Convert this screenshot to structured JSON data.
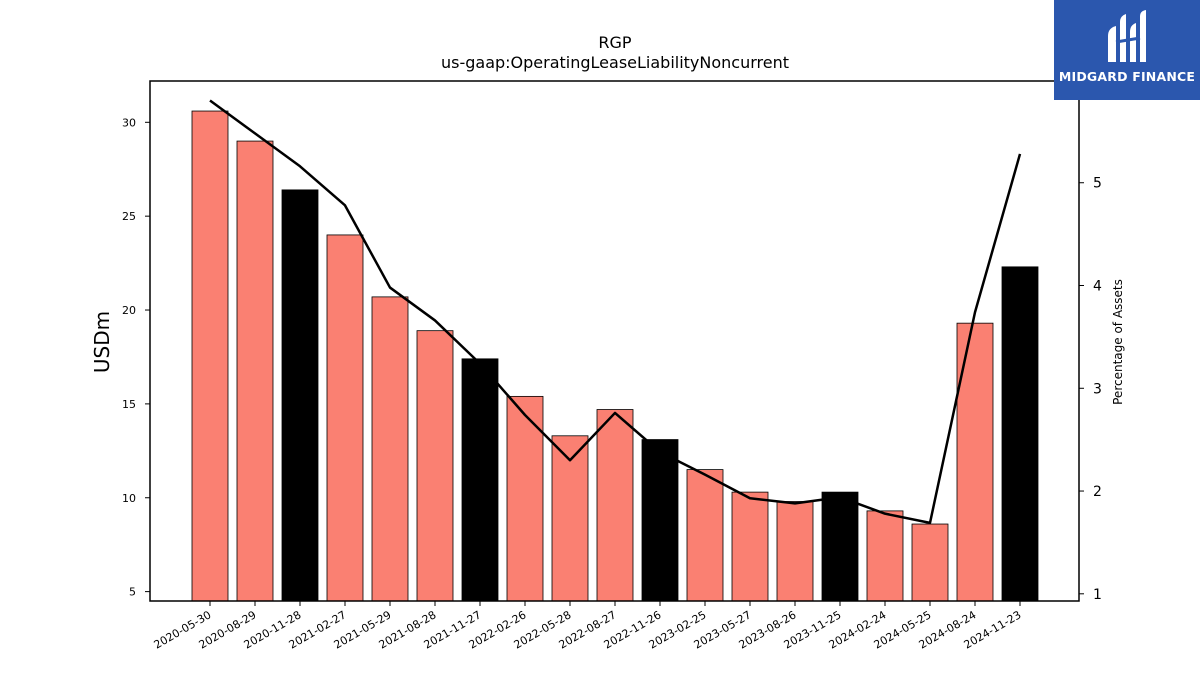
{
  "chart_data": {
    "type": "bar",
    "title": "RGP",
    "subtitle": "us-gaap:OperatingLeaseLiabilityNoncurrent",
    "ylabel": "USDm",
    "ylabel_right": "Percentage of Assets",
    "categories": [
      "2020-05-30",
      "2020-08-29",
      "2020-11-28",
      "2021-02-27",
      "2021-05-29",
      "2021-08-28",
      "2021-11-27",
      "2022-02-26",
      "2022-05-28",
      "2022-08-27",
      "2022-11-26",
      "2023-02-25",
      "2023-05-27",
      "2023-08-26",
      "2023-11-25",
      "2024-02-24",
      "2024-05-25",
      "2024-08-24",
      "2024-11-23"
    ],
    "series": [
      {
        "values": [
          30.6,
          29.0,
          26.4,
          24.0,
          20.7,
          18.9,
          17.4,
          15.4,
          13.3,
          14.7,
          13.1,
          11.5,
          10.3,
          9.8,
          10.3,
          9.3,
          8.6,
          19.3,
          22.3
        ],
        "colors": [
          "#fa8072",
          "#fa8072",
          "#000000",
          "#fa8072",
          "#fa8072",
          "#fa8072",
          "#000000",
          "#fa8072",
          "#fa8072",
          "#fa8072",
          "#000000",
          "#fa8072",
          "#fa8072",
          "#fa8072",
          "#000000",
          "#fa8072",
          "#fa8072",
          "#fa8072",
          "#000000"
        ]
      },
      {
        "axis": "right",
        "type": "line",
        "color": "#000000",
        "values": [
          5.8,
          5.48,
          5.16,
          4.78,
          3.98,
          3.66,
          3.24,
          2.74,
          2.3,
          2.76,
          2.38,
          2.16,
          1.93,
          1.88,
          1.94,
          1.78,
          1.69,
          3.74,
          5.28
        ]
      }
    ],
    "ylim": [
      4.5,
      32.2
    ],
    "yticks": [
      5,
      10,
      15,
      20,
      25,
      30
    ],
    "ylim_right": [
      0.93,
      5.99
    ],
    "yticks_right": [
      1,
      2,
      3,
      4,
      5
    ],
    "grid": false
  },
  "logo": {
    "text": "MIDGARD FINANCE",
    "background": "#2b57ae"
  }
}
